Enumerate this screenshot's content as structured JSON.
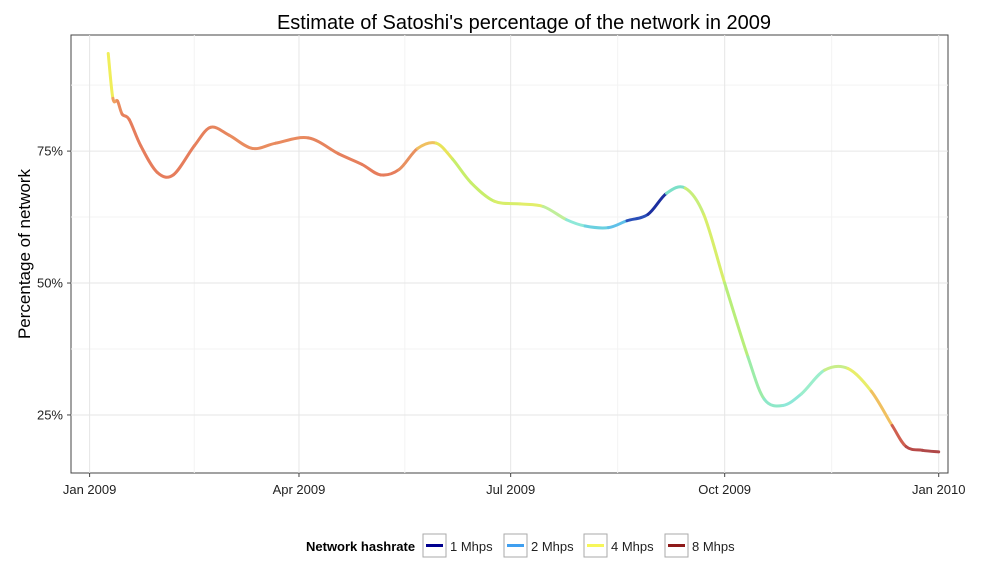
{
  "chart_data": {
    "type": "line",
    "title": "Estimate of Satoshi's percentage of the network in 2009",
    "xlabel": "",
    "ylabel": "Percentage of network",
    "x_ticks": [
      {
        "date": "2009-01-01",
        "label": "Jan 2009"
      },
      {
        "date": "2009-04-01",
        "label": "Apr 2009"
      },
      {
        "date": "2009-07-01",
        "label": "Jul 2009"
      },
      {
        "date": "2009-10-01",
        "label": "Oct 2009"
      },
      {
        "date": "2010-01-01",
        "label": "Jan 2010"
      }
    ],
    "y_ticks": [
      {
        "value": 25,
        "label": "25%"
      },
      {
        "value": 50,
        "label": "50%"
      },
      {
        "value": 75,
        "label": "75%"
      }
    ],
    "xlim": [
      "2008-12-24",
      "2010-01-05"
    ],
    "ylim": [
      14,
      97
    ],
    "grid": true,
    "legend": {
      "title": "Network hashrate",
      "position": "bottom",
      "items": [
        {
          "label": "1 Mhps",
          "color": "#00008f"
        },
        {
          "label": "2 Mhps",
          "color": "#3f9ff0"
        },
        {
          "label": "4 Mhps",
          "color": "#f7f75a"
        },
        {
          "label": "8 Mhps",
          "color": "#8e1a1a"
        }
      ]
    },
    "series": [
      {
        "points": [
          {
            "x": "2009-01-09",
            "y": 93.5,
            "color": "#f0ee5a"
          },
          {
            "x": "2009-01-11",
            "y": 85,
            "color": "#f0a060"
          },
          {
            "x": "2009-01-13",
            "y": 84.5,
            "color": "#e98a5e"
          },
          {
            "x": "2009-01-15",
            "y": 82,
            "color": "#e7815c"
          },
          {
            "x": "2009-01-18",
            "y": 81,
            "color": "#e67d5c"
          },
          {
            "x": "2009-01-23",
            "y": 76,
            "color": "#e67d5c"
          },
          {
            "x": "2009-01-30",
            "y": 71,
            "color": "#e67d5c"
          },
          {
            "x": "2009-02-06",
            "y": 70.5,
            "color": "#e67d5c"
          },
          {
            "x": "2009-02-15",
            "y": 76,
            "color": "#e6805c"
          },
          {
            "x": "2009-02-22",
            "y": 79.5,
            "color": "#e6855d"
          },
          {
            "x": "2009-03-02",
            "y": 78,
            "color": "#e98c5f"
          },
          {
            "x": "2009-03-12",
            "y": 75.5,
            "color": "#e98c5f"
          },
          {
            "x": "2009-03-22",
            "y": 76.5,
            "color": "#e98a5f"
          },
          {
            "x": "2009-04-05",
            "y": 77.5,
            "color": "#e6845d"
          },
          {
            "x": "2009-04-18",
            "y": 74.5,
            "color": "#e67f5c"
          },
          {
            "x": "2009-04-28",
            "y": 72.5,
            "color": "#e67d5c"
          },
          {
            "x": "2009-05-06",
            "y": 70.5,
            "color": "#e67d5c"
          },
          {
            "x": "2009-05-14",
            "y": 71.5,
            "color": "#e8905f"
          },
          {
            "x": "2009-05-22",
            "y": 75.5,
            "color": "#f0c060"
          },
          {
            "x": "2009-05-30",
            "y": 76.5,
            "color": "#e8e45a"
          },
          {
            "x": "2009-06-06",
            "y": 73.5,
            "color": "#c8ee6a"
          },
          {
            "x": "2009-06-14",
            "y": 69,
            "color": "#c8ee6a"
          },
          {
            "x": "2009-06-24",
            "y": 65.5,
            "color": "#d8ee6a"
          },
          {
            "x": "2009-07-05",
            "y": 65,
            "color": "#e2ee6a"
          },
          {
            "x": "2009-07-15",
            "y": 64.5,
            "color": "#c0ee9a"
          },
          {
            "x": "2009-07-25",
            "y": 62,
            "color": "#8ee8d8"
          },
          {
            "x": "2009-08-02",
            "y": 60.8,
            "color": "#6ad0e0"
          },
          {
            "x": "2009-08-12",
            "y": 60.5,
            "color": "#5fc0e8"
          },
          {
            "x": "2009-08-20",
            "y": 61.8,
            "color": "#2a4fb8"
          },
          {
            "x": "2009-08-29",
            "y": 63,
            "color": "#1c2fa0"
          },
          {
            "x": "2009-09-06",
            "y": 67,
            "color": "#7ce0c8"
          },
          {
            "x": "2009-09-14",
            "y": 68,
            "color": "#c8ee7a"
          },
          {
            "x": "2009-09-22",
            "y": 63,
            "color": "#d8ee6a"
          },
          {
            "x": "2009-10-01",
            "y": 50,
            "color": "#b8ee7a"
          },
          {
            "x": "2009-10-11",
            "y": 36,
            "color": "#9ceca8"
          },
          {
            "x": "2009-10-18",
            "y": 28,
            "color": "#8ee8c8"
          },
          {
            "x": "2009-10-26",
            "y": 26.8,
            "color": "#8ee8d8"
          },
          {
            "x": "2009-11-03",
            "y": 29,
            "color": "#9ceecc"
          },
          {
            "x": "2009-11-13",
            "y": 33.5,
            "color": "#c8ee8a"
          },
          {
            "x": "2009-11-23",
            "y": 33.8,
            "color": "#e8ee6a"
          },
          {
            "x": "2009-12-03",
            "y": 29.5,
            "color": "#f0c060"
          },
          {
            "x": "2009-12-12",
            "y": 23,
            "color": "#d06050"
          },
          {
            "x": "2009-12-18",
            "y": 19,
            "color": "#b84a48"
          },
          {
            "x": "2009-12-25",
            "y": 18.3,
            "color": "#b04848"
          },
          {
            "x": "2010-01-01",
            "y": 18,
            "color": "#b04848"
          }
        ]
      }
    ]
  }
}
